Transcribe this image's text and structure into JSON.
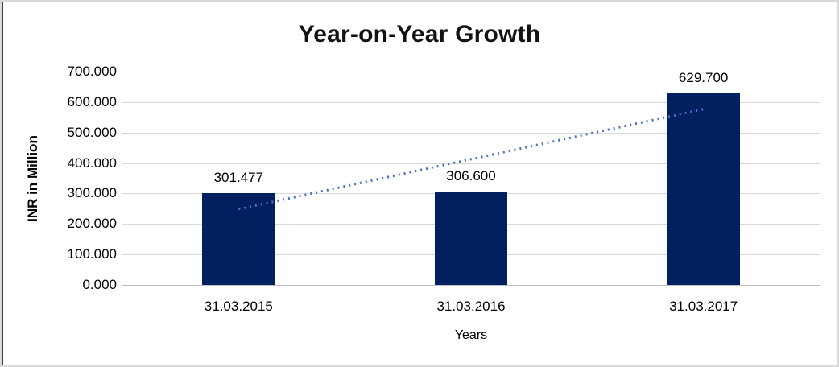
{
  "frame": {
    "border_color": "#d9d9d9",
    "left_line_color": "#3f3f3f",
    "background": "#ffffff"
  },
  "chart_data": {
    "type": "bar",
    "title": "Year-on-Year Growth",
    "categories": [
      "31.03.2015",
      "31.03.2016",
      "31.03.2017"
    ],
    "values": [
      301.477,
      306.6,
      629.7
    ],
    "value_labels": [
      "301.477",
      "306.600",
      "629.700"
    ],
    "xlabel": "Years",
    "ylabel": "INR in Million",
    "ylim": [
      0,
      700
    ],
    "ytick_interval": 100,
    "ytick_labels": [
      "0.000",
      "100.000",
      "200.000",
      "300.000",
      "400.000",
      "500.000",
      "600.000",
      "700.000"
    ],
    "grid": true,
    "legend": "none",
    "bar_color": "#002060",
    "gridline_color": "#d9d9d9",
    "text_color": "#000000",
    "trendline": {
      "type": "linear",
      "style": "dotted",
      "color": "#4472c4",
      "start_value": 248.5,
      "end_value": 576.8
    }
  }
}
